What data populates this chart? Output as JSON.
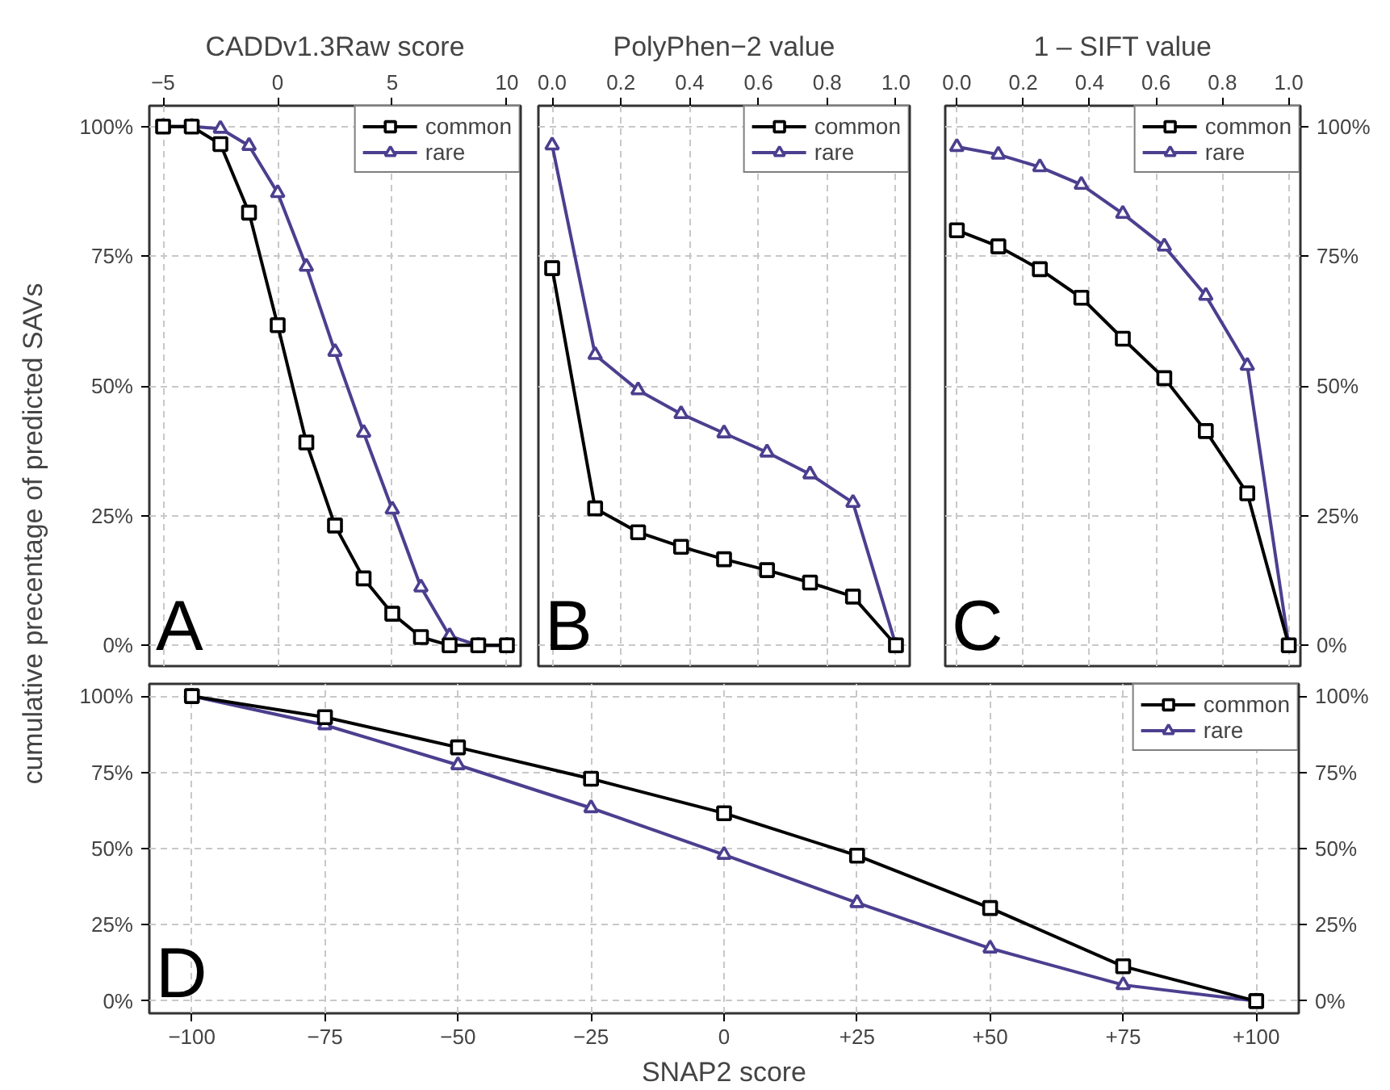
{
  "chart_data": [
    {
      "type": "line",
      "xlabel": "CADDv1.3Raw score",
      "ylabel": "cumulative precentage of predicted SAVs",
      "annotations": [
        "A"
      ],
      "x": [
        -5,
        -3.75,
        -2.5,
        -1.25,
        0,
        1.25,
        2.5,
        3.75,
        5,
        6.25,
        7.5,
        8.75,
        10
      ],
      "series": [
        {
          "name": "common",
          "color": "#000000",
          "marker": "square",
          "values": [
            100,
            100,
            96.6,
            83.4,
            61.7,
            39.1,
            23.1,
            12.9,
            6.1,
            1.6,
            0,
            0,
            0
          ]
        },
        {
          "name": "rare",
          "color": "#4b3f8f",
          "marker": "triangle",
          "values": [
            100,
            100,
            99.6,
            96.3,
            87.2,
            73.0,
            56.6,
            41.0,
            26.2,
            11.2,
            1.8,
            0,
            0
          ]
        }
      ],
      "xlim": [
        -5.6,
        10.6
      ],
      "xticks": [
        {
          "value": -5,
          "label": "−5"
        },
        0,
        5,
        10
      ],
      "ylim": [
        -4,
        104
      ],
      "yticks": [
        {
          "value": 0,
          "label": "0%"
        },
        {
          "value": 25,
          "label": "25%"
        },
        {
          "value": 50,
          "label": "50%"
        },
        {
          "value": 75,
          "label": "75%"
        },
        {
          "value": 100,
          "label": "100%"
        }
      ],
      "grid": true,
      "legend": "top right"
    },
    {
      "type": "line",
      "xlabel": "PolyPhen−2 value",
      "annotations": [
        "B"
      ],
      "x": [
        0,
        0.125,
        0.25,
        0.375,
        0.5,
        0.625,
        0.75,
        0.875,
        1.0
      ],
      "series": [
        {
          "name": "common",
          "color": "#000000",
          "marker": "square",
          "values": [
            72.7,
            26.4,
            21.8,
            19.0,
            16.6,
            14.5,
            12.1,
            9.4,
            0
          ]
        },
        {
          "name": "rare",
          "color": "#4b3f8f",
          "marker": "triangle",
          "values": [
            96.4,
            56.0,
            49.2,
            44.6,
            40.9,
            37.2,
            33.0,
            27.5,
            0
          ]
        }
      ],
      "xlim": [
        -0.04,
        1.04
      ],
      "xticks": [
        {
          "value": 0,
          "label": "0.0"
        },
        {
          "value": 0.2,
          "label": "0.2"
        },
        {
          "value": 0.4,
          "label": "0.4"
        },
        {
          "value": 0.6,
          "label": "0.6"
        },
        {
          "value": 0.8,
          "label": "0.8"
        },
        {
          "value": 1,
          "label": "1.0"
        }
      ],
      "ylim": [
        -4,
        104
      ],
      "yticks": [
        {
          "value": 0,
          "label": null
        },
        {
          "value": 25,
          "label": null
        },
        {
          "value": 50,
          "label": null
        },
        {
          "value": 75,
          "label": null
        },
        {
          "value": 100,
          "label": null
        }
      ],
      "tick_labels": "x",
      "grid": true,
      "legend": "top right"
    },
    {
      "type": "line",
      "xlabel": "1 – SIFT value",
      "annotations": [
        "C"
      ],
      "x": [
        0,
        0.125,
        0.25,
        0.375,
        0.5,
        0.625,
        0.75,
        0.875,
        1.0
      ],
      "series": [
        {
          "name": "common",
          "color": "#000000",
          "marker": "square",
          "values": [
            80.0,
            76.9,
            72.5,
            67.0,
            59.1,
            51.5,
            41.3,
            29.3,
            0
          ]
        },
        {
          "name": "rare",
          "color": "#4b3f8f",
          "marker": "triangle",
          "values": [
            96.1,
            94.6,
            92.2,
            88.8,
            83.2,
            76.9,
            67.4,
            53.9,
            0
          ]
        }
      ],
      "xlim": [
        -0.035,
        1.035
      ],
      "xticks": [
        {
          "value": 0,
          "label": "0.0"
        },
        {
          "value": 0.2,
          "label": "0.2"
        },
        {
          "value": 0.4,
          "label": "0.4"
        },
        {
          "value": 0.6,
          "label": "0.6"
        },
        {
          "value": 0.8,
          "label": "0.8"
        },
        {
          "value": 1,
          "label": "1.0"
        }
      ],
      "ylim": [
        -4,
        104
      ],
      "yticks": [
        {
          "value": 0,
          "label": "0%"
        },
        {
          "value": 25,
          "label": "25%"
        },
        {
          "value": 50,
          "label": "50%"
        },
        {
          "value": 75,
          "label": "75%"
        },
        {
          "value": 100,
          "label": "100%"
        }
      ],
      "grid": true,
      "legend": "top right"
    },
    {
      "type": "line",
      "xlabel": "SNAP2 score",
      "annotations": [
        "D"
      ],
      "x": [
        -100,
        -75,
        -50,
        -25,
        0,
        25,
        50,
        75,
        100
      ],
      "series": [
        {
          "name": "common",
          "color": "#000000",
          "marker": "square",
          "values": [
            100,
            93.1,
            83.2,
            72.9,
            61.6,
            47.7,
            30.5,
            11.4,
            0
          ]
        },
        {
          "name": "rare",
          "color": "#4b3f8f",
          "marker": "triangle",
          "values": [
            100,
            90.5,
            77.4,
            63.3,
            48.0,
            32.2,
            17.3,
            5.3,
            0
          ]
        }
      ],
      "xlim": [
        -108,
        108
      ],
      "xticks": [
        {
          "value": -100,
          "label": "−100"
        },
        {
          "value": -75,
          "label": "−75"
        },
        {
          "value": -50,
          "label": "−50"
        },
        {
          "value": -25,
          "label": "−25"
        },
        0,
        {
          "value": 25,
          "label": "+25"
        },
        {
          "value": 50,
          "label": "+50"
        },
        {
          "value": 75,
          "label": "+75"
        },
        {
          "value": 100,
          "label": "+100"
        }
      ],
      "ylim": [
        -4,
        104
      ],
      "yticks": [
        {
          "value": 0,
          "label": "0%"
        },
        {
          "value": 25,
          "label": "25%"
        },
        {
          "value": 50,
          "label": "50%"
        },
        {
          "value": 75,
          "label": "75%"
        },
        {
          "value": 100,
          "label": "100%"
        }
      ],
      "y2lim": [
        -4,
        104
      ],
      "y2ticks": [
        {
          "value": 0,
          "label": "0%"
        },
        {
          "value": 25,
          "label": "25%"
        },
        {
          "value": 50,
          "label": "50%"
        },
        {
          "value": 75,
          "label": "75%"
        },
        {
          "value": 100,
          "label": "100%"
        }
      ],
      "grid": true,
      "legend": "top right"
    }
  ]
}
